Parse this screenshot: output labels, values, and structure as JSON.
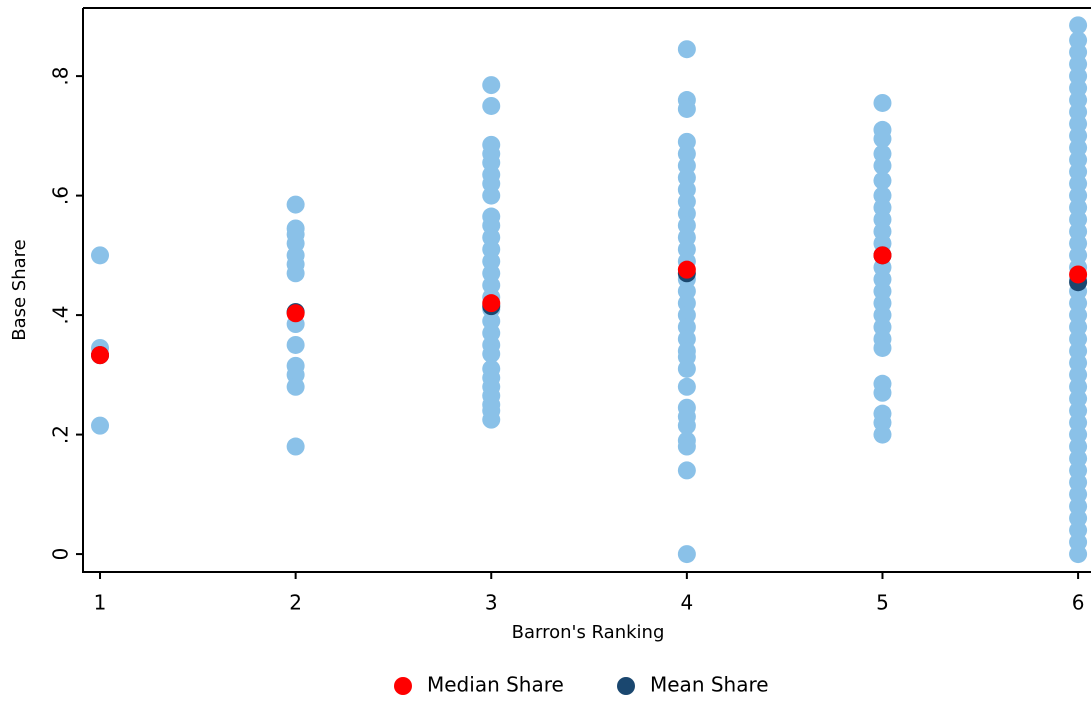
{
  "chart_data": {
    "type": "scatter",
    "x_label": "Barron's Ranking",
    "y_label": "Base Share",
    "xlim": [
      0.913,
      6.066
    ],
    "ylim": [
      -0.03,
      0.914
    ],
    "xticks": [
      1,
      2,
      3,
      4,
      5,
      6
    ],
    "yticks": [
      0,
      {
        "value": 0.2,
        "label": ".2"
      },
      {
        "value": 0.4,
        "label": ".4"
      },
      {
        "value": 0.6,
        "label": ".6"
      },
      {
        "value": 0.8,
        "label": ".8"
      }
    ],
    "legend": "bottom",
    "series": [
      {
        "color": "#8ac1e8",
        "x": [
          1,
          1,
          1,
          1,
          2,
          2,
          2,
          2,
          2,
          2,
          2,
          2,
          2,
          2,
          2,
          2,
          2,
          2,
          3,
          3,
          3,
          3,
          3,
          3,
          3,
          3,
          3,
          3,
          3,
          3,
          3,
          3,
          3,
          3,
          3,
          3,
          3,
          3,
          3,
          3,
          3,
          3,
          3,
          3,
          3,
          3,
          4,
          4,
          4,
          4,
          4,
          4,
          4,
          4,
          4,
          4,
          4,
          4,
          4,
          4,
          4,
          4,
          4,
          4,
          4,
          4,
          4,
          4,
          4,
          4,
          4,
          4,
          4,
          4,
          4,
          4,
          4,
          5,
          5,
          5,
          5,
          5,
          5,
          5,
          5,
          5,
          5,
          5,
          5,
          5,
          5,
          5,
          5,
          5,
          5,
          5,
          5,
          5,
          5,
          5,
          5,
          5,
          6,
          6,
          6,
          6,
          6,
          6,
          6,
          6,
          6,
          6,
          6,
          6,
          6,
          6,
          6,
          6,
          6,
          6,
          6,
          6,
          6,
          6,
          6,
          6,
          6,
          6,
          6,
          6,
          6,
          6,
          6,
          6,
          6,
          6,
          6,
          6,
          6,
          6,
          6,
          6,
          6,
          6,
          6,
          6,
          6
        ],
        "values": [
          0.5,
          0.345,
          0.333,
          0.215,
          0.585,
          0.545,
          0.535,
          0.52,
          0.5,
          0.485,
          0.47,
          0.405,
          0.385,
          0.35,
          0.315,
          0.3,
          0.28,
          0.18,
          0.785,
          0.75,
          0.685,
          0.67,
          0.655,
          0.635,
          0.62,
          0.6,
          0.565,
          0.55,
          0.53,
          0.51,
          0.49,
          0.47,
          0.45,
          0.43,
          0.41,
          0.39,
          0.37,
          0.35,
          0.335,
          0.31,
          0.295,
          0.28,
          0.265,
          0.25,
          0.24,
          0.225,
          0.845,
          0.76,
          0.745,
          0.69,
          0.67,
          0.65,
          0.63,
          0.61,
          0.59,
          0.57,
          0.55,
          0.53,
          0.51,
          0.49,
          0.46,
          0.44,
          0.42,
          0.4,
          0.38,
          0.36,
          0.34,
          0.33,
          0.31,
          0.28,
          0.245,
          0.23,
          0.215,
          0.19,
          0.18,
          0.14,
          0,
          0.755,
          0.71,
          0.695,
          0.67,
          0.65,
          0.625,
          0.6,
          0.58,
          0.56,
          0.54,
          0.52,
          0.5,
          0.48,
          0.46,
          0.44,
          0.42,
          0.4,
          0.38,
          0.36,
          0.345,
          0.285,
          0.27,
          0.235,
          0.22,
          0.2,
          0.885,
          0.86,
          0.84,
          0.82,
          0.8,
          0.78,
          0.76,
          0.74,
          0.72,
          0.7,
          0.68,
          0.66,
          0.64,
          0.62,
          0.6,
          0.58,
          0.56,
          0.54,
          0.52,
          0.5,
          0.48,
          0.46,
          0.44,
          0.42,
          0.4,
          0.38,
          0.36,
          0.34,
          0.32,
          0.3,
          0.28,
          0.26,
          0.24,
          0.22,
          0.2,
          0.18,
          0.16,
          0.14,
          0.12,
          0.1,
          0.08,
          0.06,
          0.04,
          0.02,
          0
        ]
      },
      {
        "name": "Median Share",
        "color": "#ff0000",
        "x": [
          1,
          2,
          3,
          4,
          5,
          6
        ],
        "values": [
          0.333,
          0.403,
          0.42,
          0.476,
          0.5,
          0.468
        ]
      },
      {
        "name": "Mean Share",
        "color": "#1a476f",
        "x": [
          1,
          2,
          3,
          4,
          5,
          6
        ],
        "values": [
          0.333,
          0.405,
          0.415,
          0.47,
          0.5,
          0.455
        ]
      }
    ]
  }
}
